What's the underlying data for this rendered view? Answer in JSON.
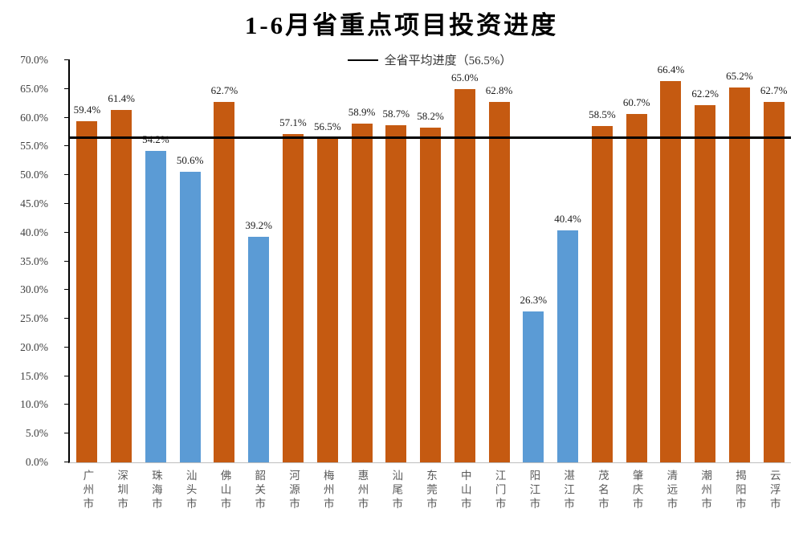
{
  "title": "1-6月省重点项目投资进度",
  "legend": {
    "label": "全省平均进度（56.5%）"
  },
  "chart_data": {
    "type": "bar",
    "title": "1-6月省重点项目投资进度",
    "categories": [
      "广州市",
      "深圳市",
      "珠海市",
      "汕头市",
      "佛山市",
      "韶关市",
      "河源市",
      "梅州市",
      "惠州市",
      "汕尾市",
      "东莞市",
      "中山市",
      "江门市",
      "阳江市",
      "湛江市",
      "茂名市",
      "肇庆市",
      "清远市",
      "潮州市",
      "揭阳市",
      "云浮市"
    ],
    "values": [
      59.4,
      61.4,
      54.2,
      50.6,
      62.7,
      39.2,
      57.1,
      56.5,
      58.9,
      58.7,
      58.2,
      65.0,
      62.8,
      26.3,
      40.4,
      58.5,
      60.7,
      66.4,
      62.2,
      65.2,
      62.7
    ],
    "value_label_format": "percent_one_decimal",
    "average_line": {
      "value": 56.5,
      "label": "全省平均进度（56.5%）"
    },
    "xlabel": "",
    "ylabel": "",
    "ylim": [
      0,
      70
    ],
    "y_tick_step": 5,
    "y_ticks": [
      "70.0%",
      "65.0%",
      "60.0%",
      "55.0%",
      "50.0%",
      "45.0%",
      "40.0%",
      "35.0%",
      "30.0%",
      "25.0%",
      "20.0%",
      "15.0%",
      "10.0%",
      "5.0%",
      "0.0%"
    ],
    "colors": {
      "above_average": "#C55A11",
      "below_average": "#5B9BD5",
      "average_line": "#000000",
      "axis": "#000000",
      "baseline": "#BFBFBF"
    },
    "grid": false,
    "legend_position": "top-center"
  }
}
